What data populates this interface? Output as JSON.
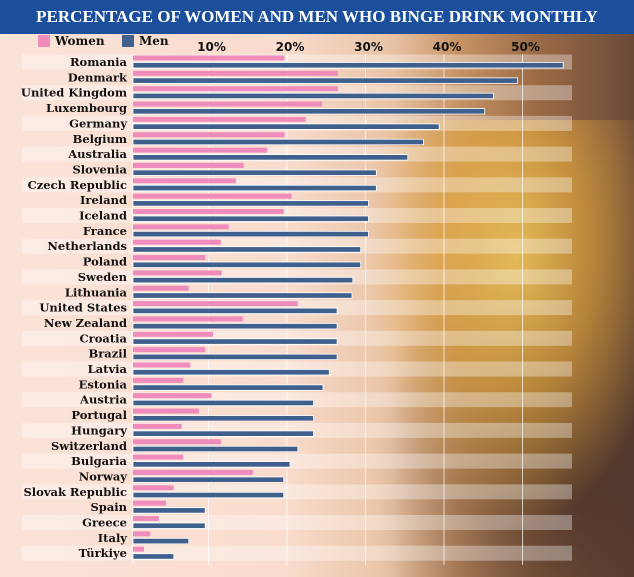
{
  "chart_data": {
    "type": "bar",
    "orientation": "horizontal",
    "title": "PERCENTAGE OF WOMEN AND MEN WHO BINGE DRINK MONTHLY",
    "xlabel": "",
    "ylabel": "",
    "xlim": [
      0,
      57
    ],
    "x_ticks": [
      "10%",
      "20%",
      "30%",
      "40%",
      "50%"
    ],
    "x_tick_values": [
      10,
      20,
      30,
      40,
      50
    ],
    "grid": true,
    "legend_placement": "top-left",
    "categories": [
      "Romania",
      "Denmark",
      "United Kingdom",
      "Luxembourg",
      "Germany",
      "Belgium",
      "Australia",
      "Slovenia",
      "Czech Republic",
      "Ireland",
      "Iceland",
      "France",
      "Netherlands",
      "Poland",
      "Sweden",
      "Lithuania",
      "United States",
      "New Zealand",
      "Croatia",
      "Brazil",
      "Latvia",
      "Estonia",
      "Austria",
      "Portugal",
      "Hungary",
      "Switzerland",
      "Bulgaria",
      "Norway",
      "Slovak Republic",
      "Spain",
      "Greece",
      "Italy",
      "Türkiye"
    ],
    "series": [
      {
        "name": "Women",
        "color": "#f08cbc",
        "values": [
          19.3,
          26.1,
          26.1,
          24.1,
          22,
          19.3,
          17.1,
          14.1,
          13.1,
          20.2,
          19.2,
          12.2,
          11.2,
          9.2,
          11.3,
          7.1,
          21,
          14,
          10.2,
          9.2,
          7.3,
          6.4,
          10,
          8.4,
          6.2,
          11.2,
          6.4,
          15.3,
          5.2,
          4.2,
          3.3,
          2.2,
          1.4
        ]
      },
      {
        "name": "Men",
        "color": "#3f5f8c",
        "values": [
          54.8,
          49,
          45.9,
          44.8,
          39,
          37,
          35,
          31,
          31,
          30,
          30,
          30,
          29,
          29,
          28,
          27.9,
          26,
          26,
          26,
          26,
          25,
          24.2,
          23,
          23,
          23,
          21,
          20,
          19.2,
          19.2,
          9.2,
          9.2,
          7.1,
          5.2
        ]
      }
    ]
  },
  "colors": {
    "title_bg": "#1b4f9b"
  }
}
